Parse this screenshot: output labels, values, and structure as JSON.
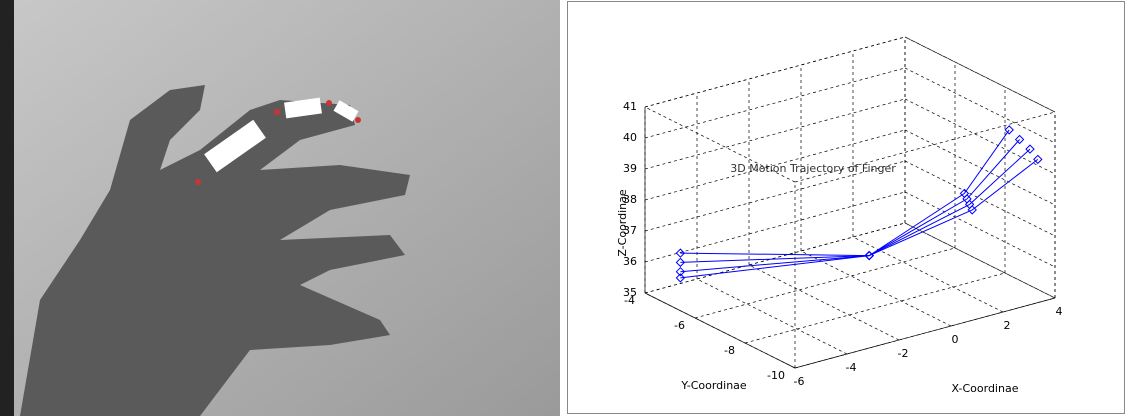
{
  "chart_data": {
    "type": "line3d",
    "title": "3D Motion Trajectory of Finger",
    "xlabel": "X-Coordinae",
    "ylabel": "Y-Coordinae",
    "zlabel": "Z-Coordinae",
    "xlim": [
      -6,
      4
    ],
    "ylim": [
      -10,
      -4
    ],
    "zlim": [
      35,
      41
    ],
    "xticks": [
      -6,
      -4,
      -2,
      0,
      2,
      4
    ],
    "yticks": [
      -10,
      -8,
      -6,
      -4
    ],
    "zticks": [
      35,
      36,
      37,
      38,
      39,
      40,
      41
    ],
    "grid": true,
    "series": [
      {
        "color": "#0000ff",
        "x": [
          -5.6,
          0.7,
          3.4,
          3.2
        ],
        "y": [
          -5,
          -6,
          -7,
          -9
        ],
        "z": [
          36.6,
          35.5,
          37.3,
          40.2
        ]
      },
      {
        "color": "#0000ff",
        "x": [
          -5.6,
          0.7,
          3.5,
          3.6
        ],
        "y": [
          -5,
          -6,
          -7,
          -9
        ],
        "z": [
          36.3,
          35.5,
          37.1,
          39.8
        ]
      },
      {
        "color": "#0000ff",
        "x": [
          -5.6,
          0.7,
          3.6,
          4.0
        ],
        "y": [
          -5,
          -6,
          -7,
          -9
        ],
        "z": [
          36.0,
          35.5,
          36.9,
          39.4
        ]
      },
      {
        "color": "#0000ff",
        "x": [
          -5.6,
          0.7,
          3.7,
          4.3
        ],
        "y": [
          -5,
          -6,
          -7,
          -9
        ],
        "z": [
          35.8,
          35.5,
          36.7,
          39.0
        ]
      }
    ]
  }
}
